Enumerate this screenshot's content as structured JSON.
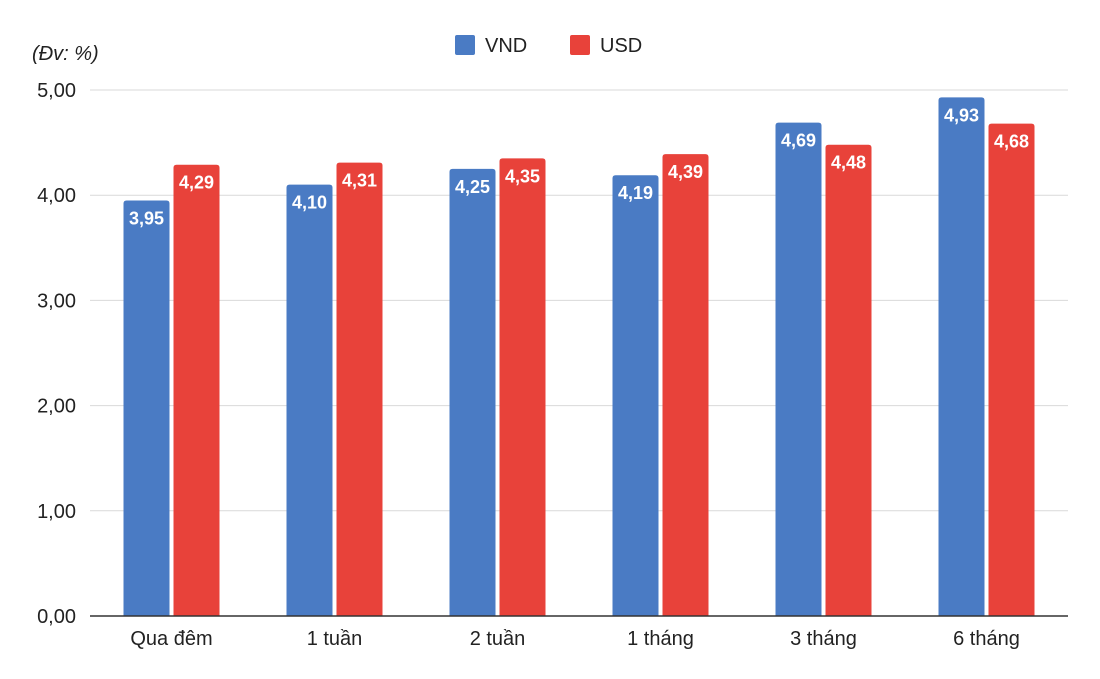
{
  "chart_data": {
    "type": "bar",
    "unit_label": "(Đv: %)",
    "categories": [
      "Qua đêm",
      "1 tuần",
      "2 tuần",
      "1 tháng",
      "3 tháng",
      "6 tháng"
    ],
    "series": [
      {
        "name": "VND",
        "color": "#4a7bc4",
        "values": [
          3.95,
          4.1,
          4.25,
          4.19,
          4.69,
          4.93
        ],
        "labels": [
          "3,95",
          "4,10",
          "4,25",
          "4,19",
          "4,69",
          "4,93"
        ]
      },
      {
        "name": "USD",
        "color": "#e8423a",
        "values": [
          4.29,
          4.31,
          4.35,
          4.39,
          4.48,
          4.68
        ],
        "labels": [
          "4,29",
          "4,31",
          "4,35",
          "4,39",
          "4,48",
          "4,68"
        ]
      }
    ],
    "ylim": [
      0,
      5
    ],
    "yticks": [
      0,
      1,
      2,
      3,
      4,
      5
    ],
    "ytick_labels": [
      "0,00",
      "1,00",
      "2,00",
      "3,00",
      "4,00",
      "5,00"
    ],
    "grid": true,
    "legend_position": "top-center",
    "title": "",
    "xlabel": "",
    "ylabel": ""
  }
}
